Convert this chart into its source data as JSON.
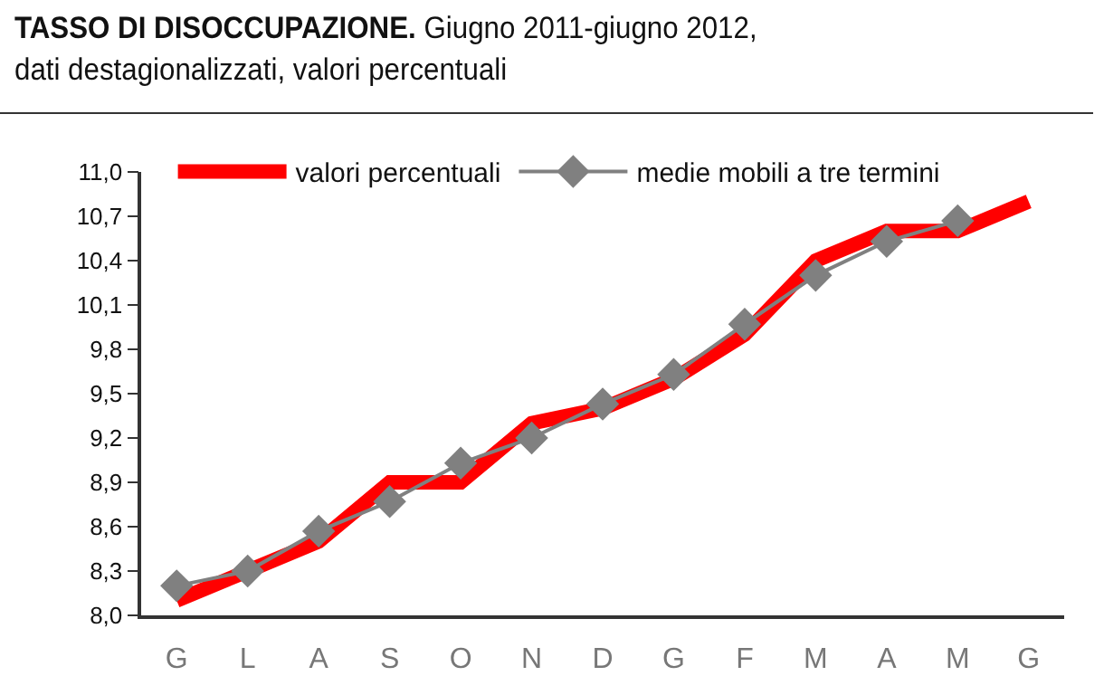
{
  "chart_data": {
    "type": "line",
    "title": "TASSO DI DISOCCUPAZIONE.",
    "subtitle": "Giugno 2011-giugno 2012, dati destagionalizzati, valori percentuali",
    "categories": [
      "G",
      "L",
      "A",
      "S",
      "O",
      "N",
      "D",
      "G",
      "F",
      "M",
      "A",
      "M",
      "G"
    ],
    "series": [
      {
        "name": "valori percentuali",
        "color": "#ff0000",
        "marker": "none",
        "values": [
          8.1,
          8.3,
          8.5,
          8.9,
          8.9,
          9.3,
          9.4,
          9.6,
          9.9,
          10.4,
          10.6,
          10.6,
          10.8
        ]
      },
      {
        "name": "medie mobili a tre termini",
        "color": "#808080",
        "marker": "diamond",
        "values": [
          8.2,
          8.3,
          8.57,
          8.77,
          9.03,
          9.2,
          9.43,
          9.63,
          9.97,
          10.3,
          10.53,
          10.67,
          null
        ]
      }
    ],
    "ylim": [
      8.0,
      11.0
    ],
    "yticks": [
      {
        "value": 8.0,
        "label": "8,0"
      },
      {
        "value": 8.3,
        "label": "8,3"
      },
      {
        "value": 8.6,
        "label": "8,6"
      },
      {
        "value": 8.9,
        "label": "8,9"
      },
      {
        "value": 9.2,
        "label": "9,2"
      },
      {
        "value": 9.5,
        "label": "9,5"
      },
      {
        "value": 9.8,
        "label": "9,8"
      },
      {
        "value": 10.1,
        "label": "10,1"
      },
      {
        "value": 10.4,
        "label": "10,4"
      },
      {
        "value": 10.7,
        "label": "10,7"
      },
      {
        "value": 11.0,
        "label": "11,0"
      }
    ],
    "grid": false,
    "legend": "top"
  }
}
